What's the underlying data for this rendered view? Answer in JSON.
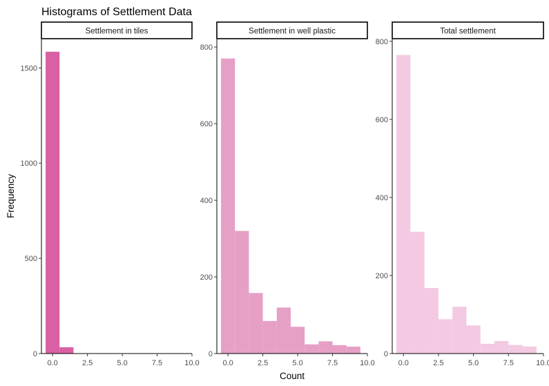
{
  "chart_data": {
    "type": "bar",
    "title": "Histograms of Settlement Data",
    "xlabel": "Count",
    "ylabel": "Frequency",
    "grid": false,
    "legend": "none",
    "panels": [
      {
        "strip": "Settlement in tiles",
        "color": "#d860a3",
        "xlim": [
          -0.8,
          10
        ],
        "ylim": [
          0,
          1650
        ],
        "xticks": [
          0,
          2.5,
          5,
          7.5,
          10
        ],
        "xtick_labels": [
          "0.0",
          "2.5",
          "5.0",
          "7.5",
          "10.0"
        ],
        "yticks": [
          0,
          500,
          1000,
          1500
        ],
        "yticks_labels": [
          "0",
          "500",
          "1000",
          "1500"
        ],
        "bins": [
          {
            "x0": -0.5,
            "x1": 0.5,
            "count": 1585
          },
          {
            "x0": 0.5,
            "x1": 1.5,
            "count": 33
          }
        ]
      },
      {
        "strip": "Settlement in well plastic",
        "color": "#e6a0c6",
        "xlim": [
          -0.8,
          10
        ],
        "ylim": [
          0,
          820
        ],
        "xticks": [
          0,
          2.5,
          5,
          7.5,
          10
        ],
        "xtick_labels": [
          "0.0",
          "2.5",
          "5.0",
          "7.5",
          "10.0"
        ],
        "yticks": [
          0,
          200,
          400,
          600,
          800
        ],
        "yticks_labels": [
          "0",
          "200",
          "400",
          "600",
          "800"
        ],
        "bins": [
          {
            "x0": -0.5,
            "x1": 0.5,
            "count": 770
          },
          {
            "x0": 0.5,
            "x1": 1.5,
            "count": 320
          },
          {
            "x0": 1.5,
            "x1": 2.5,
            "count": 158
          },
          {
            "x0": 2.5,
            "x1": 3.5,
            "count": 85
          },
          {
            "x0": 3.5,
            "x1": 4.5,
            "count": 120
          },
          {
            "x0": 4.5,
            "x1": 5.5,
            "count": 70
          },
          {
            "x0": 5.5,
            "x1": 6.5,
            "count": 24
          },
          {
            "x0": 6.5,
            "x1": 7.5,
            "count": 32
          },
          {
            "x0": 7.5,
            "x1": 8.5,
            "count": 22
          },
          {
            "x0": 8.5,
            "x1": 9.5,
            "count": 18
          }
        ]
      },
      {
        "strip": "Total settlement",
        "color": "#f3cae2",
        "xlim": [
          -0.8,
          10
        ],
        "ylim": [
          0,
          805
        ],
        "xticks": [
          0,
          2.5,
          5,
          7.5,
          10
        ],
        "xtick_labels": [
          "0.0",
          "2.5",
          "5.0",
          "7.5",
          "10.0"
        ],
        "yticks": [
          0,
          200,
          400,
          600,
          800
        ],
        "yticks_labels": [
          "0",
          "200",
          "400",
          "600",
          "800"
        ],
        "bins": [
          {
            "x0": -0.5,
            "x1": 0.5,
            "count": 765
          },
          {
            "x0": 0.5,
            "x1": 1.5,
            "count": 312
          },
          {
            "x0": 1.5,
            "x1": 2.5,
            "count": 168
          },
          {
            "x0": 2.5,
            "x1": 3.5,
            "count": 88
          },
          {
            "x0": 3.5,
            "x1": 4.5,
            "count": 120
          },
          {
            "x0": 4.5,
            "x1": 5.5,
            "count": 72
          },
          {
            "x0": 5.5,
            "x1": 6.5,
            "count": 25
          },
          {
            "x0": 6.5,
            "x1": 7.5,
            "count": 32
          },
          {
            "x0": 7.5,
            "x1": 8.5,
            "count": 22
          },
          {
            "x0": 8.5,
            "x1": 9.5,
            "count": 18
          }
        ]
      }
    ]
  }
}
